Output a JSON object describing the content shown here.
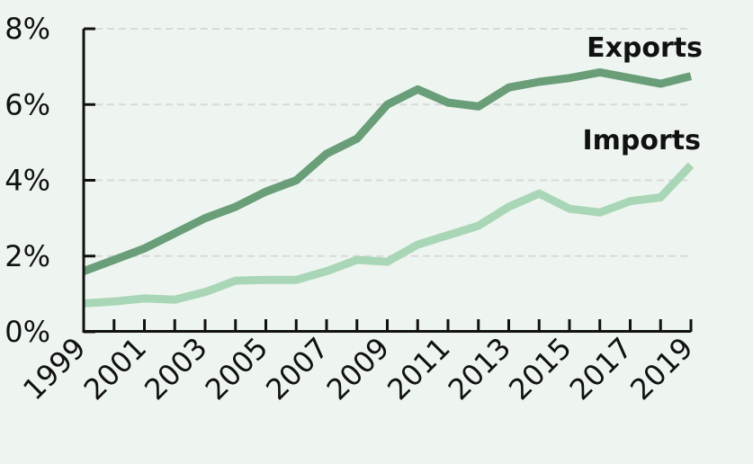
{
  "chart_data": {
    "type": "line",
    "title": "",
    "xlabel": "",
    "ylabel": "",
    "x": [
      1999,
      2000,
      2001,
      2002,
      2003,
      2004,
      2005,
      2006,
      2007,
      2008,
      2009,
      2010,
      2011,
      2012,
      2013,
      2014,
      2015,
      2016,
      2017,
      2018,
      2019
    ],
    "x_tick_labels": [
      "1999",
      "2001",
      "2003",
      "2005",
      "2007",
      "2009",
      "2011",
      "2013",
      "2015",
      "2017",
      "2019"
    ],
    "y_tick_labels": [
      "0%",
      "2%",
      "4%",
      "6%",
      "8%"
    ],
    "ylim": [
      0,
      8
    ],
    "y_unit": "%",
    "grid": "horizontal dashed",
    "legend": "direct labels at line ends",
    "series": [
      {
        "name": "Exports",
        "color": "#6a9e79",
        "values": [
          1.6,
          1.9,
          2.2,
          2.6,
          3.0,
          3.3,
          3.7,
          4.0,
          4.7,
          5.1,
          6.0,
          6.4,
          6.05,
          5.95,
          6.45,
          6.6,
          6.7,
          6.85,
          6.7,
          6.55,
          6.75
        ]
      },
      {
        "name": "Imports",
        "color": "#a9d6b6",
        "values": [
          0.75,
          0.8,
          0.88,
          0.85,
          1.05,
          1.35,
          1.37,
          1.37,
          1.6,
          1.9,
          1.85,
          2.3,
          2.55,
          2.8,
          3.3,
          3.65,
          3.25,
          3.15,
          3.45,
          3.55,
          4.4
        ]
      }
    ]
  }
}
